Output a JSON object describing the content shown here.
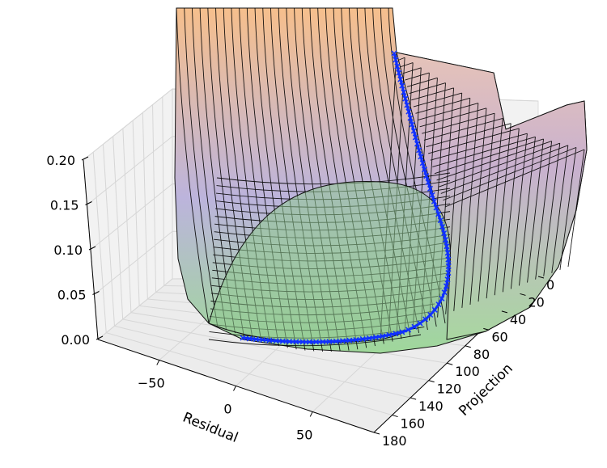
{
  "chart_data": {
    "type": "surface3d",
    "title": "",
    "xlabel": "Residual",
    "ylabel": "Projection",
    "zlabel": "",
    "x_ticks": [
      -50,
      0,
      50
    ],
    "y_ticks": [
      0,
      20,
      40,
      60,
      80,
      100,
      120,
      140,
      160,
      180
    ],
    "z_ticks": [
      "0.00",
      "0.05",
      "0.10",
      "0.15",
      "0.20"
    ],
    "x_range": [
      -90,
      90
    ],
    "y_range": [
      0,
      180
    ],
    "z_range": [
      0,
      0.2
    ],
    "grid": true,
    "surface_colormap": [
      "#9fd89a",
      "#bcb4dc",
      "#f6bf8c"
    ],
    "ridge_line": {
      "color": "#1030ff",
      "marker": "x",
      "points": [
        {
          "residual": -60,
          "projection": 180,
          "value": 0.22
        },
        {
          "residual": -55,
          "projection": 150,
          "value": 0.17
        },
        {
          "residual": -48,
          "projection": 120,
          "value": 0.1
        },
        {
          "residual": -40,
          "projection": 95,
          "value": 0.06
        },
        {
          "residual": -30,
          "projection": 75,
          "value": 0.03
        },
        {
          "residual": -20,
          "projection": 55,
          "value": 0.015
        },
        {
          "residual": -10,
          "projection": 35,
          "value": 0.008
        },
        {
          "residual": 0,
          "projection": 15,
          "value": 0.004
        },
        {
          "residual": 10,
          "projection": 0,
          "value": 0.002
        }
      ]
    }
  }
}
